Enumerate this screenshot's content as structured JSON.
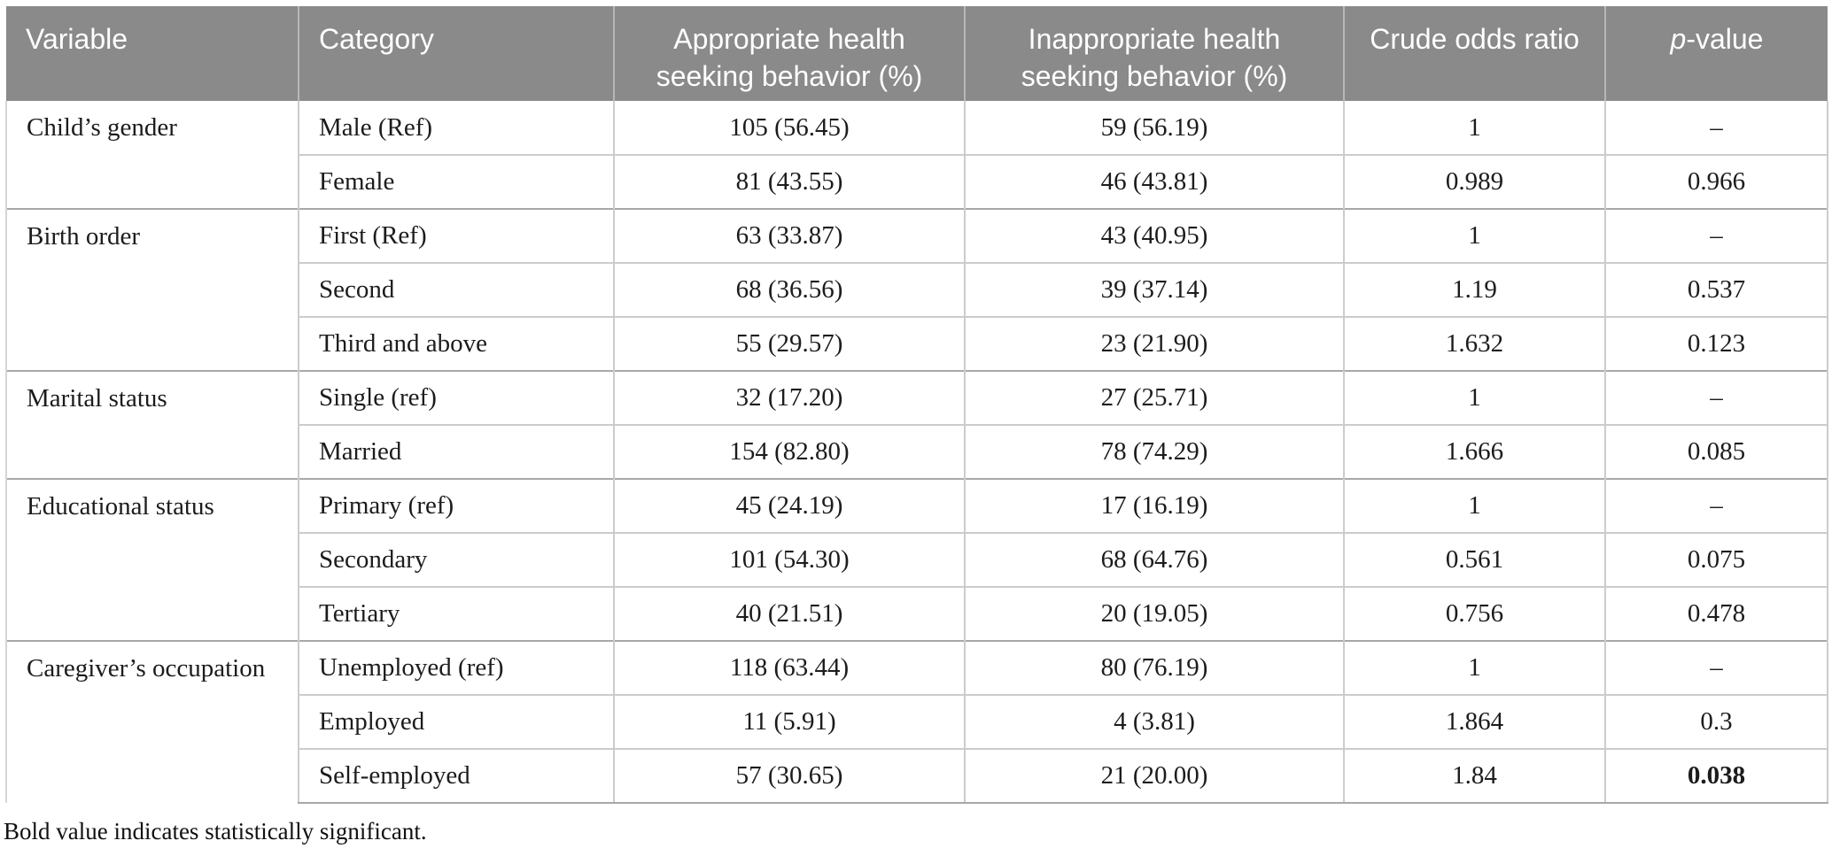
{
  "colors": {
    "header_bg": "#8a8a8a",
    "header_text": "#ffffff",
    "header_divider": "#b7b7b7",
    "line_light": "#cccccc",
    "line_dark": "#a8a8a8",
    "body_text": "#1c1c1c"
  },
  "table": {
    "columns": [
      "Variable",
      "Category",
      "Appropriate health seeking behavior (%)",
      "Inappropriate health seeking behavior (%)",
      "Crude odds ratio"
    ],
    "p_header": {
      "italic": "p",
      "rest": "-value"
    },
    "groups": [
      {
        "variable": "Child’s gender",
        "rows": [
          {
            "category": "Male (Ref)",
            "appropriate": "105 (56.45)",
            "inappropriate": "59 (56.19)",
            "odds_ratio": "1",
            "p_value": "–",
            "p_bold": false
          },
          {
            "category": "Female",
            "appropriate": "81 (43.55)",
            "inappropriate": "46 (43.81)",
            "odds_ratio": "0.989",
            "p_value": "0.966",
            "p_bold": false
          }
        ]
      },
      {
        "variable": "Birth order",
        "rows": [
          {
            "category": "First (Ref)",
            "appropriate": "63 (33.87)",
            "inappropriate": "43 (40.95)",
            "odds_ratio": "1",
            "p_value": "–",
            "p_bold": false
          },
          {
            "category": "Second",
            "appropriate": "68 (36.56)",
            "inappropriate": "39 (37.14)",
            "odds_ratio": "1.19",
            "p_value": "0.537",
            "p_bold": false
          },
          {
            "category": "Third and above",
            "appropriate": "55 (29.57)",
            "inappropriate": "23 (21.90)",
            "odds_ratio": "1.632",
            "p_value": "0.123",
            "p_bold": false
          }
        ]
      },
      {
        "variable": "Marital status",
        "rows": [
          {
            "category": "Single (ref)",
            "appropriate": "32 (17.20)",
            "inappropriate": "27 (25.71)",
            "odds_ratio": "1",
            "p_value": "–",
            "p_bold": false
          },
          {
            "category": "Married",
            "appropriate": "154 (82.80)",
            "inappropriate": "78 (74.29)",
            "odds_ratio": "1.666",
            "p_value": "0.085",
            "p_bold": false
          }
        ]
      },
      {
        "variable": "Educational status",
        "rows": [
          {
            "category": "Primary (ref)",
            "appropriate": "45 (24.19)",
            "inappropriate": "17 (16.19)",
            "odds_ratio": "1",
            "p_value": "–",
            "p_bold": false
          },
          {
            "category": "Secondary",
            "appropriate": "101 (54.30)",
            "inappropriate": "68 (64.76)",
            "odds_ratio": "0.561",
            "p_value": "0.075",
            "p_bold": false
          },
          {
            "category": "Tertiary",
            "appropriate": "40 (21.51)",
            "inappropriate": "20 (19.05)",
            "odds_ratio": "0.756",
            "p_value": "0.478",
            "p_bold": false
          }
        ]
      },
      {
        "variable": "Caregiver’s occupation",
        "rows": [
          {
            "category": "Unemployed (ref)",
            "appropriate": "118 (63.44)",
            "inappropriate": "80 (76.19)",
            "odds_ratio": "1",
            "p_value": "–",
            "p_bold": false
          },
          {
            "category": "Employed",
            "appropriate": "11 (5.91)",
            "inappropriate": "4 (3.81)",
            "odds_ratio": "1.864",
            "p_value": "0.3",
            "p_bold": false
          },
          {
            "category": "Self-employed",
            "appropriate": "57 (30.65)",
            "inappropriate": "21 (20.00)",
            "odds_ratio": "1.84",
            "p_value": "0.038",
            "p_bold": true
          }
        ]
      }
    ],
    "footnote": "Bold value indicates statistically significant."
  }
}
